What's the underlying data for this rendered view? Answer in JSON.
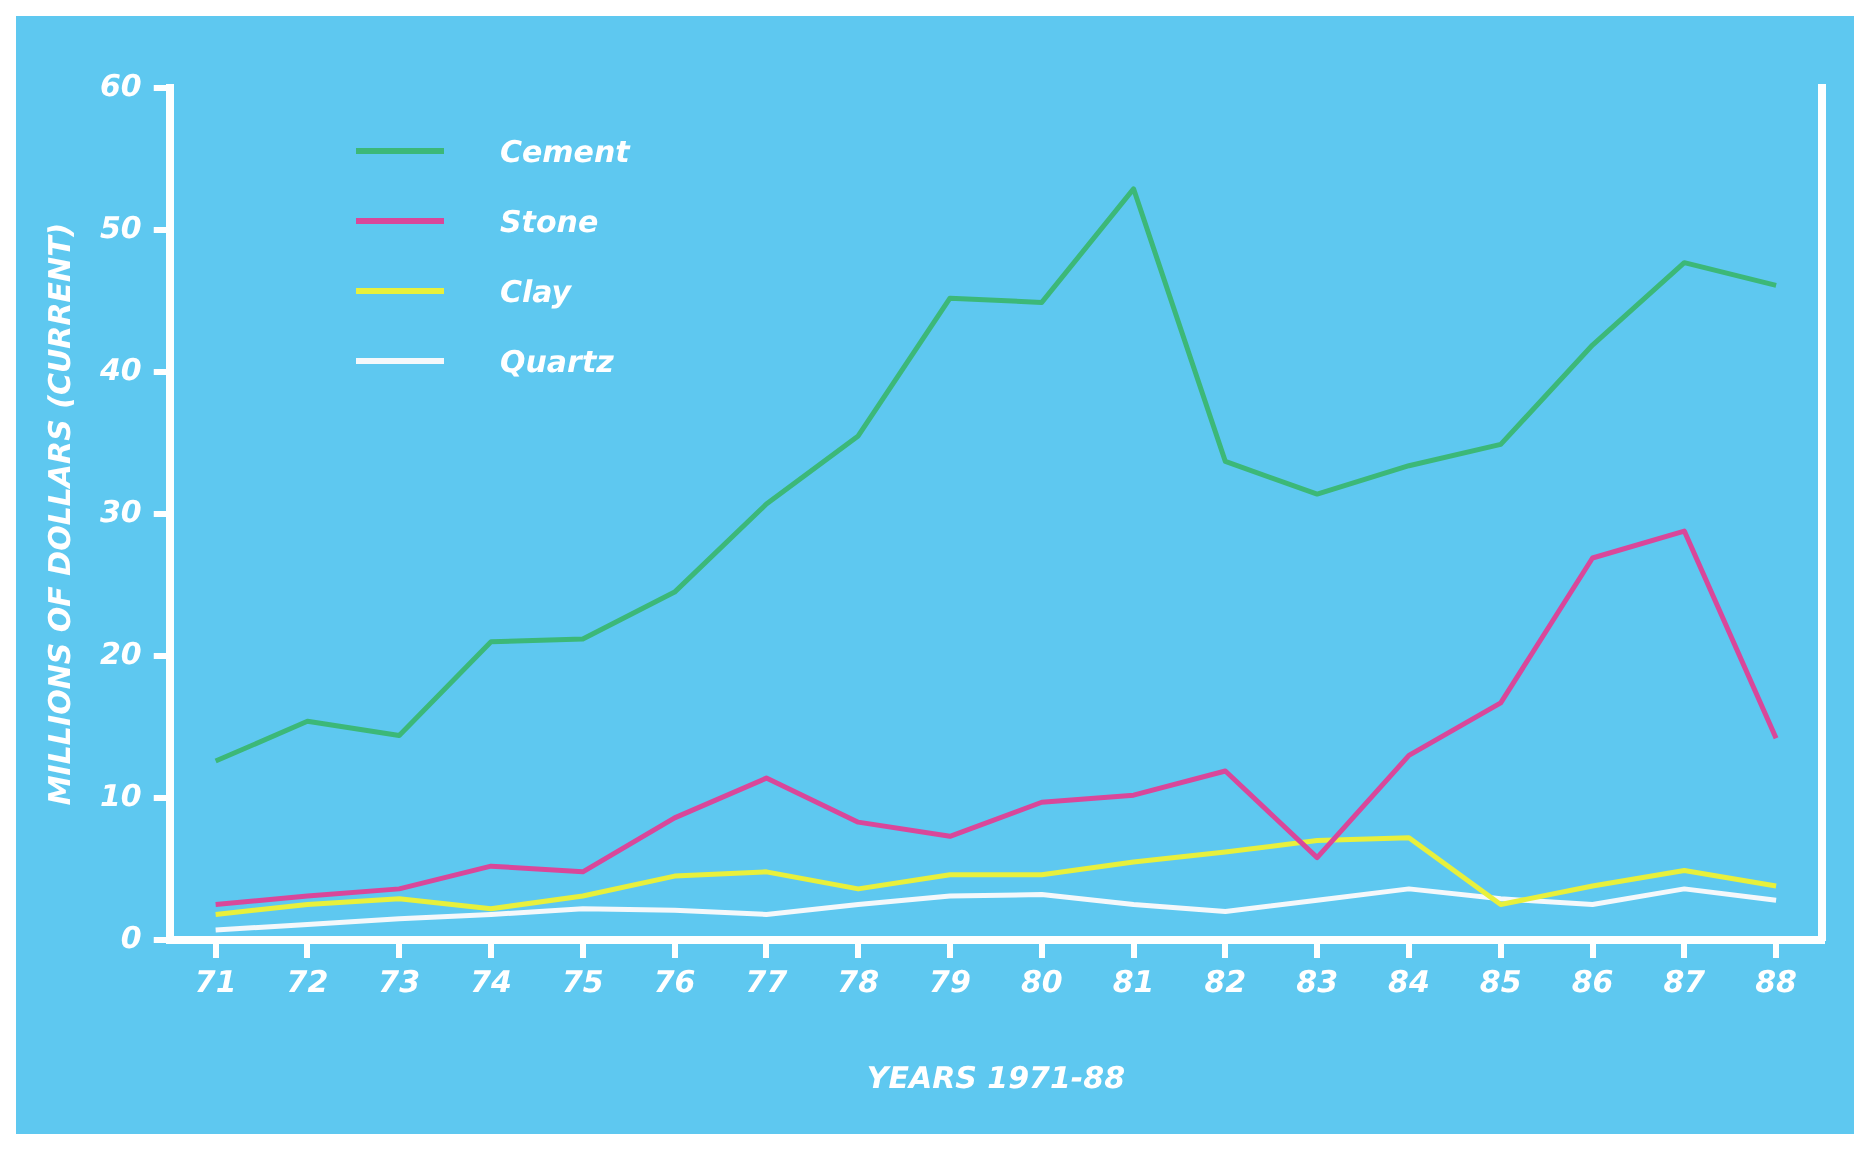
{
  "chart_data": {
    "type": "line",
    "xlabel": "YEARS 1971-88",
    "ylabel": "MILLIONS OF DOLLARS (CURRENT)",
    "categories": [
      "71",
      "72",
      "73",
      "74",
      "75",
      "76",
      "77",
      "78",
      "79",
      "80",
      "81",
      "82",
      "83",
      "84",
      "85",
      "86",
      "87",
      "88"
    ],
    "series": [
      {
        "name": "Cement",
        "color": "#3cb878",
        "values": [
          12.6,
          15.4,
          14.4,
          21,
          21.2,
          24.5,
          30.7,
          35.5,
          45.2,
          44.9,
          52.9,
          33.7,
          31.4,
          33.4,
          34.9,
          41.9,
          47.7,
          46.1
        ]
      },
      {
        "name": "Stone",
        "color": "#d9479a",
        "values": [
          2.5,
          3.1,
          3.6,
          5.2,
          4.8,
          8.6,
          11.4,
          8.3,
          7.3,
          9.7,
          10.2,
          11.9,
          5.8,
          13,
          16.7,
          26.9,
          28.8,
          14.2
        ]
      },
      {
        "name": "Clay",
        "color": "#e8f03c",
        "values": [
          1.8,
          2.5,
          2.9,
          2.2,
          3.1,
          4.5,
          4.8,
          3.6,
          4.6,
          4.6,
          5.5,
          6.2,
          7,
          7.2,
          2.5,
          3.8,
          4.9,
          3.8
        ]
      },
      {
        "name": "Quartz",
        "color": "#f4f8fb",
        "values": [
          0.7,
          1.1,
          1.5,
          1.8,
          2.2,
          2.1,
          1.8,
          2.5,
          3.1,
          3.2,
          2.5,
          2,
          2.8,
          3.6,
          2.9,
          2.5,
          3.6,
          2.8
        ]
      }
    ],
    "ylim": [
      0,
      60
    ],
    "yticks": [
      0,
      10,
      20,
      30,
      40,
      50,
      60
    ],
    "legend": "top left",
    "marker": "none",
    "line_style": "solid"
  }
}
